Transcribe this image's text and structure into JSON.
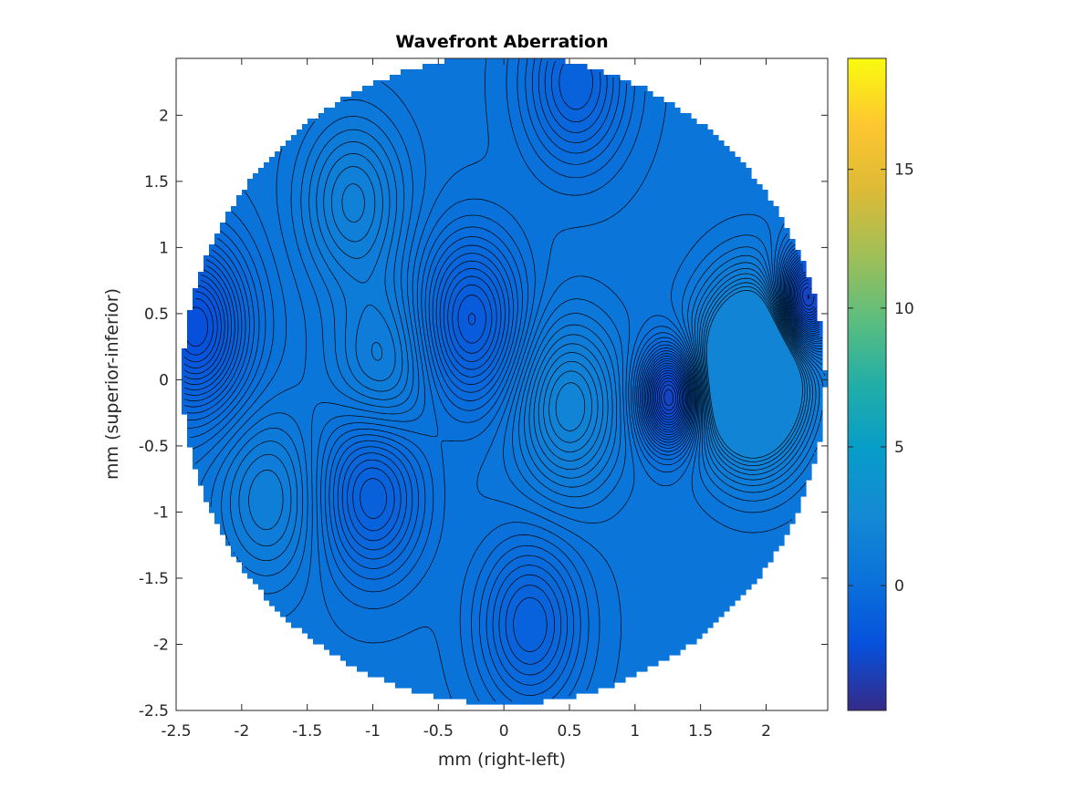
{
  "chart_data": {
    "type": "contour",
    "title": "Wavefront Aberration",
    "xlabel": "mm (right-left)",
    "ylabel": "mm (superior-inferior)",
    "xlim": [
      -2.5,
      2.47
    ],
    "ylim": [
      -2.5,
      2.43
    ],
    "x_ticks": [
      -2.5,
      -2,
      -1.5,
      -1,
      -0.5,
      0,
      0.5,
      1,
      1.5,
      2
    ],
    "x_tick_labels": [
      "-2.5",
      "-2",
      "-1.5",
      "-1",
      "-0.5",
      "0",
      "0.5",
      "1",
      "1.5",
      "2"
    ],
    "y_ticks": [
      -2.5,
      -2,
      -1.5,
      -1,
      -0.5,
      0,
      0.5,
      1,
      1.5,
      2
    ],
    "y_tick_labels": [
      "-2.5",
      "-2",
      "-1.5",
      "-1",
      "-0.5",
      "0",
      "0.5",
      "1",
      "1.5",
      "2"
    ],
    "pupil_radius_mm": 2.45,
    "colormap": "parula",
    "colorbar": {
      "range": [
        -4.5,
        19
      ],
      "ticks": [
        0,
        5,
        10,
        15
      ],
      "tick_labels": [
        "0",
        "5",
        "10",
        "15"
      ]
    },
    "contour_count": 40,
    "features": [
      {
        "type": "min",
        "x": 1.27,
        "y": -0.13,
        "value": -3.2
      },
      {
        "type": "max",
        "x": 1.9,
        "y": 0.05,
        "value": 5.2
      },
      {
        "type": "min",
        "x": -0.25,
        "y": 0.45,
        "value": -1.5
      },
      {
        "type": "max",
        "x": -0.93,
        "y": 0.1,
        "value": 1.4
      },
      {
        "type": "min",
        "x": -2.35,
        "y": 0.4,
        "value": -2.2
      },
      {
        "type": "max",
        "x": -1.15,
        "y": 1.35,
        "value": 1.6
      },
      {
        "type": "max",
        "x": 0.5,
        "y": -0.2,
        "value": 2.0
      },
      {
        "type": "min",
        "x": -1.0,
        "y": -0.85,
        "value": -1.2
      },
      {
        "type": "max",
        "x": -1.8,
        "y": -0.9,
        "value": 1.4
      },
      {
        "type": "min",
        "x": 0.55,
        "y": 2.25,
        "value": -1.0
      },
      {
        "type": "min",
        "x": 0.2,
        "y": -1.85,
        "value": -1.0
      },
      {
        "type": "min",
        "x": 2.3,
        "y": 0.6,
        "value": -3.6
      }
    ]
  }
}
